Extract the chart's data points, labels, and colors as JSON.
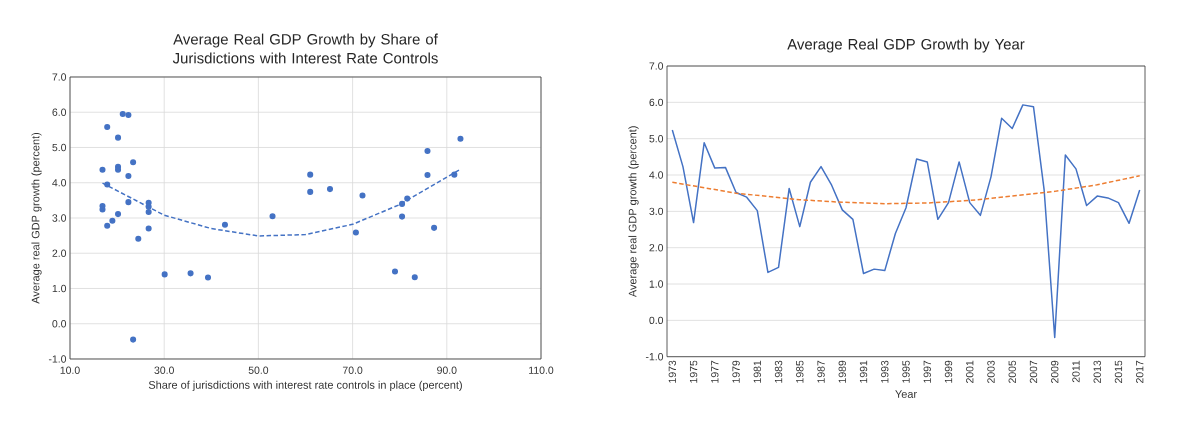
{
  "chart_data": [
    {
      "type": "scatter",
      "title": "Average Real GDP Growth by Share of Jurisdictions with Interest Rate Controls",
      "xlabel": "Share of jurisdictions with interest rate controls in place (percent)",
      "ylabel": "Average real GDP growth (percent)",
      "xlim": [
        10,
        110
      ],
      "xticks": [
        {
          "value": 10,
          "label": "10.0"
        },
        {
          "value": 30,
          "label": "30.0"
        },
        {
          "value": 50,
          "label": "50.0"
        },
        {
          "value": 70,
          "label": "70.0"
        },
        {
          "value": 90,
          "label": "90.0"
        },
        {
          "value": 110,
          "label": "110.0"
        }
      ],
      "ylim": [
        -1,
        7
      ],
      "yticks": [
        {
          "value": -1,
          "label": "-1.0"
        },
        {
          "value": 0,
          "label": "0.0"
        },
        {
          "value": 1,
          "label": "1.0"
        },
        {
          "value": 2,
          "label": "2.0"
        },
        {
          "value": 3,
          "label": "3.0"
        },
        {
          "value": 4,
          "label": "4.0"
        },
        {
          "value": 5,
          "label": "5.0"
        },
        {
          "value": 6,
          "label": "6.0"
        },
        {
          "value": 7,
          "label": "7.0"
        }
      ],
      "grid": true,
      "series": [
        {
          "color": "#4472c4",
          "marker": "circle",
          "x": [
            21.2,
            22.4,
            17.9,
            20.2,
            23.4,
            16.9,
            20.2,
            20.2,
            22.4,
            17.9,
            22.4,
            26.7,
            26.7,
            26.7,
            16.9,
            16.9,
            20.2,
            19.0,
            17.9,
            26.7,
            24.5,
            30.1,
            35.6,
            39.3,
            23.4,
            42.9,
            53.0,
            61.0,
            61.0,
            65.2,
            72.1,
            70.7,
            79.0,
            83.2,
            80.5,
            80.5,
            81.6,
            85.9,
            85.9,
            87.3,
            91.6,
            92.9
          ],
          "values": [
            5.95,
            5.92,
            5.58,
            5.28,
            4.58,
            4.37,
            4.45,
            4.37,
            4.19,
            3.95,
            3.45,
            3.43,
            3.32,
            3.17,
            3.34,
            3.24,
            3.11,
            2.92,
            2.78,
            2.7,
            2.41,
            1.4,
            1.43,
            1.31,
            -0.45,
            2.81,
            3.05,
            4.23,
            3.74,
            3.82,
            3.64,
            2.59,
            1.48,
            1.32,
            3.04,
            3.4,
            3.55,
            4.9,
            4.22,
            2.72,
            4.23,
            5.25
          ]
        },
        {
          "type": "line",
          "color": "#4472c4",
          "marker": "none",
          "line_style": "dashed",
          "x": [
            16.9,
            30,
            40,
            50,
            60,
            70,
            80,
            92.9
          ],
          "values": [
            3.99,
            3.08,
            2.7,
            2.49,
            2.53,
            2.82,
            3.38,
            4.38
          ]
        }
      ]
    },
    {
      "type": "line",
      "title": "Average Real GDP Growth by Year",
      "xlabel": "Year",
      "ylabel": "Average real GDP growth (percent)",
      "xlim": [
        1972.5,
        2017.5
      ],
      "xticks": [
        1973,
        1975,
        1977,
        1979,
        1981,
        1983,
        1985,
        1987,
        1989,
        1991,
        1993,
        1995,
        1997,
        1999,
        2001,
        2003,
        2005,
        2007,
        2009,
        2011,
        2013,
        2015,
        2017
      ],
      "ylim": [
        -1,
        7
      ],
      "yticks": [
        {
          "value": -1,
          "label": "-1.0"
        },
        {
          "value": 0,
          "label": "0.0"
        },
        {
          "value": 1,
          "label": "1.0"
        },
        {
          "value": 2,
          "label": "2.0"
        },
        {
          "value": 3,
          "label": "3.0"
        },
        {
          "value": 4,
          "label": "4.0"
        },
        {
          "value": 5,
          "label": "5.0"
        },
        {
          "value": 6,
          "label": "6.0"
        },
        {
          "value": 7,
          "label": "7.0"
        }
      ],
      "grid": "y",
      "series": [
        {
          "color": "#4472c4",
          "marker": "none",
          "line_style": "solid",
          "x": [
            1973,
            1974,
            1975,
            1976,
            1977,
            1978,
            1979,
            1980,
            1981,
            1982,
            1983,
            1984,
            1985,
            1986,
            1987,
            1988,
            1989,
            1990,
            1991,
            1992,
            1993,
            1994,
            1995,
            1996,
            1997,
            1998,
            1999,
            2000,
            2001,
            2002,
            2003,
            2004,
            2005,
            2006,
            2007,
            2008,
            2009,
            2010,
            2011,
            2012,
            2013,
            2014,
            2015,
            2016,
            2017
          ],
          "values": [
            5.24,
            4.23,
            2.69,
            4.89,
            4.19,
            4.21,
            3.52,
            3.39,
            3.02,
            1.32,
            1.46,
            3.63,
            2.58,
            3.8,
            4.23,
            3.72,
            3.04,
            2.78,
            1.29,
            1.41,
            1.37,
            2.39,
            3.1,
            4.44,
            4.36,
            2.78,
            3.24,
            4.36,
            3.24,
            2.89,
            3.95,
            5.56,
            5.28,
            5.93,
            5.88,
            3.6,
            -0.47,
            4.55,
            4.17,
            3.16,
            3.42,
            3.37,
            3.24,
            2.67,
            3.59
          ]
        },
        {
          "color": "#ed7d31",
          "marker": "none",
          "line_style": "dashed",
          "x": [
            1973,
            1979,
            1985,
            1989,
            1993,
            1997,
            2001,
            2005,
            2009,
            2013,
            2017
          ],
          "values": [
            3.8,
            3.5,
            3.32,
            3.25,
            3.21,
            3.23,
            3.3,
            3.42,
            3.55,
            3.73,
            3.98
          ]
        }
      ]
    }
  ]
}
